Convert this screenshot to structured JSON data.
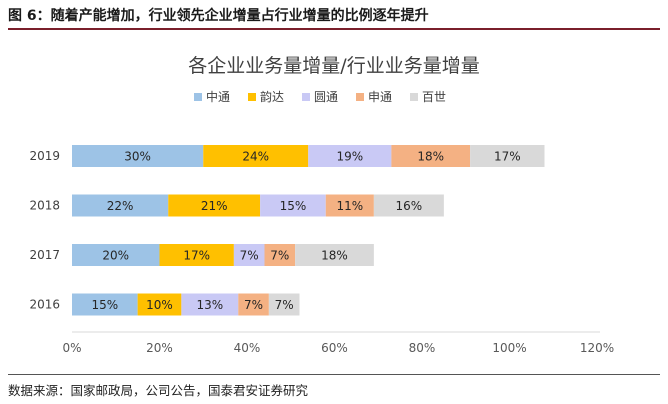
{
  "figure_title": "图 6：随着产能增加，行业领先企业增量占行业增量的比例逐年提升",
  "source": "数据来源：国家邮政局，公司公告，国泰君安证券研究",
  "chart_data": {
    "type": "bar",
    "orientation": "horizontal",
    "stacked": true,
    "title": "各企业业务量增量/行业业务量增量",
    "categories": [
      "2019",
      "2018",
      "2017",
      "2016"
    ],
    "series": [
      {
        "name": "中通",
        "values": [
          30,
          22,
          20,
          15
        ],
        "labels": [
          "30%",
          "22%",
          "20%",
          "15%"
        ],
        "color": "#9dc3e6"
      },
      {
        "name": "韵达",
        "values": [
          24,
          21,
          17,
          10
        ],
        "labels": [
          "24%",
          "21%",
          "17%",
          "10%"
        ],
        "color": "#ffc000"
      },
      {
        "name": "圆通",
        "values": [
          19,
          15,
          7,
          13
        ],
        "labels": [
          "19%",
          "15%",
          "7%",
          "13%"
        ],
        "color": "#c9c9f5"
      },
      {
        "name": "申通",
        "values": [
          18,
          11,
          7,
          7
        ],
        "labels": [
          "18%",
          "11%",
          "7%",
          "7%"
        ],
        "color": "#f4b183"
      },
      {
        "name": "百世",
        "values": [
          17,
          16,
          18,
          7
        ],
        "labels": [
          "17%",
          "16%",
          "18%",
          "7%"
        ],
        "color": "#d9d9d9"
      }
    ],
    "xlim": [
      0,
      120
    ],
    "xticks": [
      0,
      20,
      40,
      60,
      80,
      100,
      120
    ],
    "xtick_labels": [
      "0%",
      "20%",
      "40%",
      "60%",
      "80%",
      "100%",
      "120%"
    ],
    "legend_position": "top",
    "grid": false
  }
}
